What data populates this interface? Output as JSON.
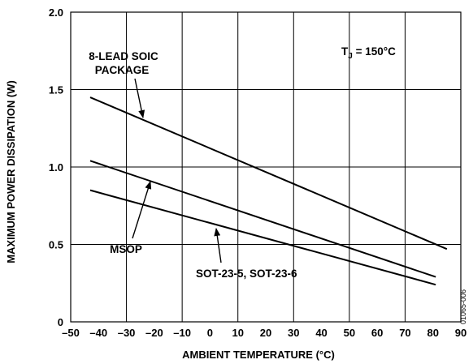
{
  "chart_data": {
    "type": "line",
    "xlabel": "AMBIENT TEMPERATURE (°C)",
    "ylabel": "MAXIMUM POWER DISSIPATION (W)",
    "xlim": [
      -50,
      90
    ],
    "ylim": [
      0,
      2.0
    ],
    "grid": true,
    "x_ticks": [
      "–50",
      "–40",
      "–30",
      "–20",
      "–10",
      "0",
      "10",
      "20",
      "30",
      "40",
      "50",
      "60",
      "70",
      "80",
      "90"
    ],
    "y_ticks": [
      "0",
      "0.5",
      "1.0",
      "1.5",
      "2.0"
    ],
    "series": [
      {
        "name": "8-LEAD SOIC PACKAGE",
        "x": [
          -43,
          85
        ],
        "y": [
          1.45,
          0.47
        ]
      },
      {
        "name": "MSOP",
        "x": [
          -43,
          81
        ],
        "y": [
          1.04,
          0.29
        ]
      },
      {
        "name": "SOT-23-5, SOT-23-6",
        "x": [
          -43,
          81
        ],
        "y": [
          0.85,
          0.24
        ]
      }
    ],
    "annotations": {
      "tj_prefix": "T",
      "tj_sub": "J",
      "tj_suffix": " = 150°C",
      "soic_line1": "8-LEAD SOIC",
      "soic_line2": "PACKAGE",
      "msop": "MSOP",
      "sot": "SOT-23-5, SOT-23-6"
    },
    "figure_id": "01065-006"
  }
}
